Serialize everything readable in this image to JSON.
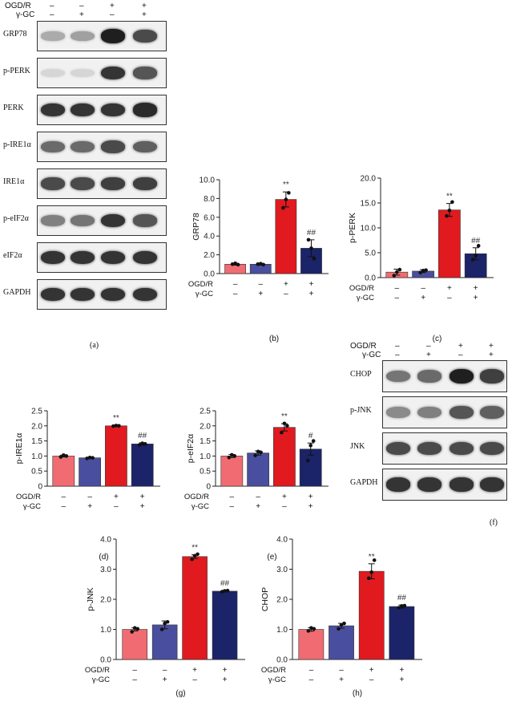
{
  "treatments": {
    "ogdr_label": "OGD/R",
    "gc_label": "γ-GC",
    "ogdr_signs": [
      "–",
      "–",
      "+",
      "+"
    ],
    "gc_signs": [
      "–",
      "+",
      "–",
      "+"
    ]
  },
  "colors": {
    "control": "#f06c72",
    "gc": "#4a4e9e",
    "ogdr": "#e01a1f",
    "ogdr_gc": "#1b2369"
  },
  "blot_a": {
    "letter": "(a)",
    "rows": [
      {
        "label": "GRP78",
        "intensity": [
          0.3,
          0.35,
          0.95,
          0.75
        ]
      },
      {
        "label": "p-PERK",
        "intensity": [
          0.1,
          0.1,
          0.85,
          0.7
        ]
      },
      {
        "label": "PERK",
        "intensity": [
          0.85,
          0.85,
          0.85,
          0.9
        ]
      },
      {
        "label": "p-IRE1α",
        "intensity": [
          0.6,
          0.6,
          0.75,
          0.65
        ]
      },
      {
        "label": "IRE1α",
        "intensity": [
          0.75,
          0.75,
          0.8,
          0.8
        ]
      },
      {
        "label": "p-eIF2α",
        "intensity": [
          0.5,
          0.55,
          0.85,
          0.7
        ]
      },
      {
        "label": "eIF2α",
        "intensity": [
          0.85,
          0.85,
          0.85,
          0.85
        ]
      },
      {
        "label": "GAPDH",
        "intensity": [
          0.85,
          0.85,
          0.85,
          0.85
        ]
      }
    ]
  },
  "blot_f": {
    "letter": "(f)",
    "rows": [
      {
        "label": "CHOP",
        "intensity": [
          0.55,
          0.6,
          0.95,
          0.8
        ]
      },
      {
        "label": "p-JNK",
        "intensity": [
          0.45,
          0.5,
          0.7,
          0.65
        ]
      },
      {
        "label": "JNK",
        "intensity": [
          0.75,
          0.75,
          0.75,
          0.75
        ]
      },
      {
        "label": "GAPDH",
        "intensity": [
          0.85,
          0.85,
          0.85,
          0.85
        ]
      }
    ]
  },
  "chart_data": [
    {
      "type": "bar",
      "letter": "(b)",
      "ylabel": "GRP78",
      "ylim": [
        0,
        10
      ],
      "yticks": [
        "0.0",
        "2.0",
        "4.0",
        "6.0",
        "8.0",
        "10.0"
      ],
      "values": [
        1.0,
        1.0,
        7.9,
        2.7
      ],
      "errors": [
        0.1,
        0.1,
        0.8,
        0.9
      ],
      "points": [
        [
          1.0,
          1.1,
          0.95
        ],
        [
          1.0,
          1.05,
          0.95
        ],
        [
          7.0,
          7.9,
          8.6
        ],
        [
          3.6,
          2.7,
          1.6
        ]
      ],
      "annotations": [
        "",
        "",
        "**",
        "##"
      ]
    },
    {
      "type": "bar",
      "letter": "(c)",
      "ylabel": "p-PERK",
      "ylim": [
        0,
        20
      ],
      "yticks": [
        "0.0",
        "5.0",
        "10.0",
        "15.0",
        "20.0"
      ],
      "values": [
        1.1,
        1.3,
        13.6,
        4.8
      ],
      "errors": [
        0.6,
        0.3,
        1.3,
        1.2
      ],
      "points": [
        [
          0.4,
          1.1,
          1.6
        ],
        [
          1.0,
          1.4,
          1.5
        ],
        [
          12.4,
          13.5,
          15.2
        ],
        [
          3.6,
          4.4,
          6.4
        ]
      ],
      "annotations": [
        "",
        "",
        "**",
        "##"
      ]
    },
    {
      "type": "bar",
      "letter": "(d)",
      "ylabel": "p-IRE1α",
      "ylim": [
        0,
        2.5
      ],
      "yticks": [
        "0",
        "0.5",
        "1.0",
        "1.5",
        "2.0",
        "2.5"
      ],
      "values": [
        1.0,
        0.94,
        2.0,
        1.4
      ],
      "errors": [
        0.03,
        0.02,
        0.02,
        0.04
      ],
      "points": [
        [
          0.97,
          1.03,
          1.0
        ],
        [
          0.92,
          0.95,
          0.94
        ],
        [
          1.99,
          2.01,
          2.0
        ],
        [
          1.37,
          1.42,
          1.4
        ]
      ],
      "annotations": [
        "",
        "",
        "**",
        "##"
      ]
    },
    {
      "type": "bar",
      "letter": "(e)",
      "ylabel": "p-eIF2α",
      "ylim": [
        0,
        2.5
      ],
      "yticks": [
        "0",
        "0.5",
        "1.0",
        "1.5",
        "2.0",
        "2.5"
      ],
      "values": [
        1.0,
        1.1,
        1.95,
        1.23
      ],
      "errors": [
        0.05,
        0.07,
        0.12,
        0.2
      ],
      "points": [
        [
          0.95,
          1.04,
          1.0
        ],
        [
          1.02,
          1.15,
          1.12
        ],
        [
          1.78,
          2.08,
          2.0
        ],
        [
          0.85,
          1.35,
          1.5
        ]
      ],
      "annotations": [
        "",
        "",
        "**",
        "#"
      ]
    },
    {
      "type": "bar",
      "letter": "(g)",
      "ylabel": "p-JNK",
      "ylim": [
        0,
        4
      ],
      "yticks": [
        "0.0",
        "1.0",
        "2.0",
        "3.0",
        "4.0"
      ],
      "values": [
        1.0,
        1.15,
        3.42,
        2.27
      ],
      "errors": [
        0.05,
        0.13,
        0.06,
        0.03
      ],
      "points": [
        [
          0.92,
          1.05,
          1.02
        ],
        [
          1.0,
          1.2,
          1.25
        ],
        [
          3.33,
          3.45,
          3.5
        ],
        [
          2.25,
          2.28,
          2.29
        ]
      ],
      "annotations": [
        "",
        "",
        "**",
        "##"
      ]
    },
    {
      "type": "bar",
      "letter": "(h)",
      "ylabel": "CHOP",
      "ylim": [
        0,
        4
      ],
      "yticks": [
        "0.0",
        "1.0",
        "2.0",
        "3.0",
        "4.0"
      ],
      "values": [
        1.0,
        1.12,
        2.93,
        1.76
      ],
      "errors": [
        0.06,
        0.08,
        0.25,
        0.05
      ],
      "points": [
        [
          0.95,
          1.05,
          1.02
        ],
        [
          1.02,
          1.15,
          1.2
        ],
        [
          2.7,
          2.9,
          3.3
        ],
        [
          1.72,
          1.78,
          1.79
        ]
      ],
      "annotations": [
        "",
        "",
        "**",
        "##"
      ]
    }
  ]
}
